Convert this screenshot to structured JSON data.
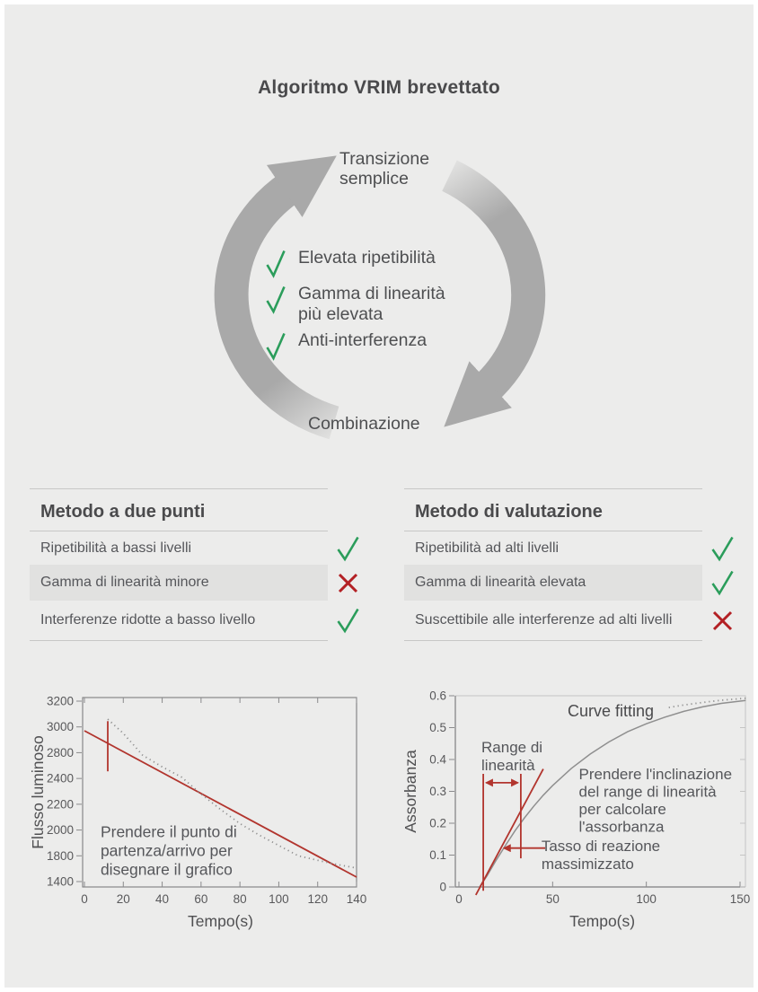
{
  "title": "Algoritmo VRIM brevettato",
  "cycle": {
    "top_label": "Transizione\nsemplice",
    "bottom_label": "Combinazione",
    "features": [
      {
        "icon": "check",
        "label": "Elevata ripetibilità"
      },
      {
        "icon": "check",
        "label": "Gamma di linearità\npiù elevata"
      },
      {
        "icon": "check",
        "label": "Anti-interferenza"
      }
    ]
  },
  "tables": [
    {
      "title": "Metodo a due punti",
      "rows": [
        {
          "label": "Ripetibilità a bassi livelli",
          "icon": "check",
          "highlight": false
        },
        {
          "label": "Gamma di linearità minore",
          "icon": "x",
          "highlight": true
        },
        {
          "label": "Interferenze ridotte a basso livello",
          "icon": "check",
          "highlight": false
        }
      ]
    },
    {
      "title": "Metodo di valutazione",
      "rows": [
        {
          "label": "Ripetibilità ad alti livelli",
          "icon": "check",
          "highlight": false
        },
        {
          "label": "Gamma di linearità elevata",
          "icon": "check",
          "highlight": true
        },
        {
          "label": "Suscettibile alle interferenze ad alti livelli",
          "icon": "x",
          "highlight": false
        }
      ]
    }
  ],
  "colors": {
    "bg": "#ECECEB",
    "text_dark": "#4A4A4C",
    "text_body": "#55565A",
    "check_green": "#2B9D5B",
    "x_red": "#B32024",
    "line_red": "#B2352E",
    "curve_gray": "#8F8F8F",
    "arrow_gray": "#A9A9A9",
    "arrow_tail": "#E2E2E1",
    "divider": "#C7C7C6",
    "row_highlight": "#E1E1E0",
    "axis_dark": "#7E7E80",
    "axis_light": "#C5C5C4",
    "tick": "#8A8A8C"
  },
  "chart_data": [
    {
      "type": "line",
      "title": "",
      "xlabel": "Tempo(s)",
      "ylabel": "Flusso luminoso",
      "xlim": [
        0,
        140
      ],
      "x_ticks": [
        0,
        20,
        40,
        60,
        80,
        100,
        120,
        140
      ],
      "y_ticks": [
        3200,
        3000,
        2800,
        2400,
        2200,
        2000,
        1800,
        1400
      ],
      "grid": false,
      "series": [
        {
          "name": "linea-due-punti",
          "color": "line_red",
          "style": "solid",
          "width": 1.8,
          "points": [
            [
              0,
              2970
            ],
            [
              140,
              1470
            ]
          ]
        },
        {
          "name": "curva-misurata",
          "color": "curve_gray",
          "style": "dotted",
          "width": 1.8,
          "points": [
            [
              12,
              3060
            ],
            [
              20,
              2950
            ],
            [
              30,
              2760
            ],
            [
              40,
              2580
            ],
            [
              50,
              2420
            ],
            [
              60,
              2280
            ],
            [
              70,
              2160
            ],
            [
              80,
              2050
            ],
            [
              90,
              1960
            ],
            [
              100,
              1880
            ],
            [
              110,
              1800
            ],
            [
              120,
              1730
            ],
            [
              130,
              1665
            ],
            [
              140,
              1610
            ]
          ]
        },
        {
          "name": "marcatore-punto-partenza",
          "color": "line_red",
          "style": "solid",
          "width": 1.8,
          "points": [
            [
              12,
              3045
            ],
            [
              12,
              2510
            ]
          ]
        }
      ],
      "annotations": [
        {
          "name": "nota-metodo",
          "text": "Prendere il punto di\npartenza/arrivo per\ndisegnare il grafico",
          "x": 8.3,
          "y": 1945,
          "size": 17.5,
          "color": "text_body",
          "anchor": "start",
          "line_h": 21
        }
      ],
      "layout": {
        "plot": {
          "l": 64,
          "r": 369,
          "t": 25,
          "b": 236
        },
        "x_map": [
          [
            0,
            66
          ],
          [
            140,
            369
          ]
        ],
        "y_map": {
          "mode": "ticks",
          "top": 29,
          "bottom": 230
        },
        "top_ticks": true,
        "right_ticks": false,
        "box_light_tr": false
      }
    },
    {
      "type": "line",
      "title": "",
      "xlabel": "Tempo(s)",
      "ylabel": "Assorbanza",
      "xlim": [
        0,
        153
      ],
      "x_ticks": [
        0,
        50,
        100,
        150
      ],
      "y_ticks": [
        0.6,
        0.5,
        0.4,
        0.3,
        0.2,
        0.1,
        0
      ],
      "grid": false,
      "series": [
        {
          "name": "curva-reazione",
          "color": "curve_gray",
          "style": "solid",
          "width": 1.5,
          "points": [
            [
              11,
              0
            ],
            [
              15,
              0.035
            ],
            [
              20,
              0.085
            ],
            [
              25,
              0.132
            ],
            [
              30,
              0.177
            ],
            [
              35,
              0.217
            ],
            [
              40,
              0.254
            ],
            [
              45,
              0.288
            ],
            [
              50,
              0.318
            ],
            [
              60,
              0.372
            ],
            [
              70,
              0.417
            ],
            [
              80,
              0.455
            ],
            [
              90,
              0.487
            ],
            [
              100,
              0.512
            ],
            [
              110,
              0.533
            ],
            [
              120,
              0.551
            ],
            [
              130,
              0.565
            ],
            [
              140,
              0.576
            ],
            [
              153,
              0.585
            ]
          ]
        },
        {
          "name": "curve-fitting-punteggiata",
          "color": "curve_gray",
          "style": "dotted",
          "width": 1.8,
          "points": [
            [
              112,
              0.563
            ],
            [
              120,
              0.571
            ],
            [
              130,
              0.579
            ],
            [
              140,
              0.586
            ],
            [
              153,
              0.592
            ]
          ]
        },
        {
          "name": "retta-range-linearita",
          "color": "line_red",
          "style": "solid",
          "width": 1.8,
          "points": [
            [
              9,
              -0.025
            ],
            [
              45,
              0.37
            ]
          ]
        },
        {
          "name": "limite-sinistro-range",
          "color": "line_red",
          "style": "solid",
          "width": 1.8,
          "points": [
            [
              13,
              -0.012
            ],
            [
              13,
              0.355
            ]
          ]
        },
        {
          "name": "limite-destro-range",
          "color": "line_red",
          "style": "solid",
          "width": 1.8,
          "points": [
            [
              33,
              0.09
            ],
            [
              33,
              0.355
            ]
          ]
        },
        {
          "name": "freccia-range",
          "color": "line_red",
          "style": "solid",
          "width": 1.8,
          "arrows": "both",
          "points": [
            [
              14.5,
              0.327
            ],
            [
              31.5,
              0.327
            ]
          ]
        },
        {
          "name": "freccia-tasso",
          "color": "line_red",
          "style": "solid",
          "width": 1.8,
          "arrows": "end",
          "points": [
            [
              46,
              0.122
            ],
            [
              24,
              0.122
            ]
          ]
        }
      ],
      "annotations": [
        {
          "name": "curve-fitting",
          "text": "Curve fitting",
          "x": 81,
          "y": 0.535,
          "size": 18,
          "color": "text_dark",
          "anchor": "middle",
          "line_h": 19
        },
        {
          "name": "range-linearita",
          "text": "Range di\nlinearità",
          "x": 12,
          "y": 0.423,
          "size": 17,
          "color": "text_body",
          "anchor": "start",
          "line_h": 20
        },
        {
          "name": "prendere-inclinazione",
          "text": "Prendere l'inclinazione\ndel range di linearità\nper calcolare\nl'assorbanza",
          "x": 64,
          "y": 0.338,
          "size": 17,
          "color": "text_body",
          "anchor": "start",
          "line_h": 19.5
        },
        {
          "name": "tasso-reazione",
          "text": "Tasso di reazione\nmassimizzato",
          "x": 44,
          "y": 0.113,
          "size": 17,
          "color": "text_body",
          "anchor": "start",
          "line_h": 20
        }
      ],
      "layout": {
        "plot": {
          "l": 62,
          "r": 385,
          "t": 23,
          "b": 236
        },
        "x_map": [
          [
            0,
            66
          ],
          [
            150,
            379
          ]
        ],
        "y_map": {
          "mode": "linear",
          "v": [
            [
              0,
              236
            ],
            [
              0.6,
              23
            ]
          ]
        },
        "top_ticks": false,
        "right_ticks": true,
        "box_light_tr": true
      }
    }
  ]
}
